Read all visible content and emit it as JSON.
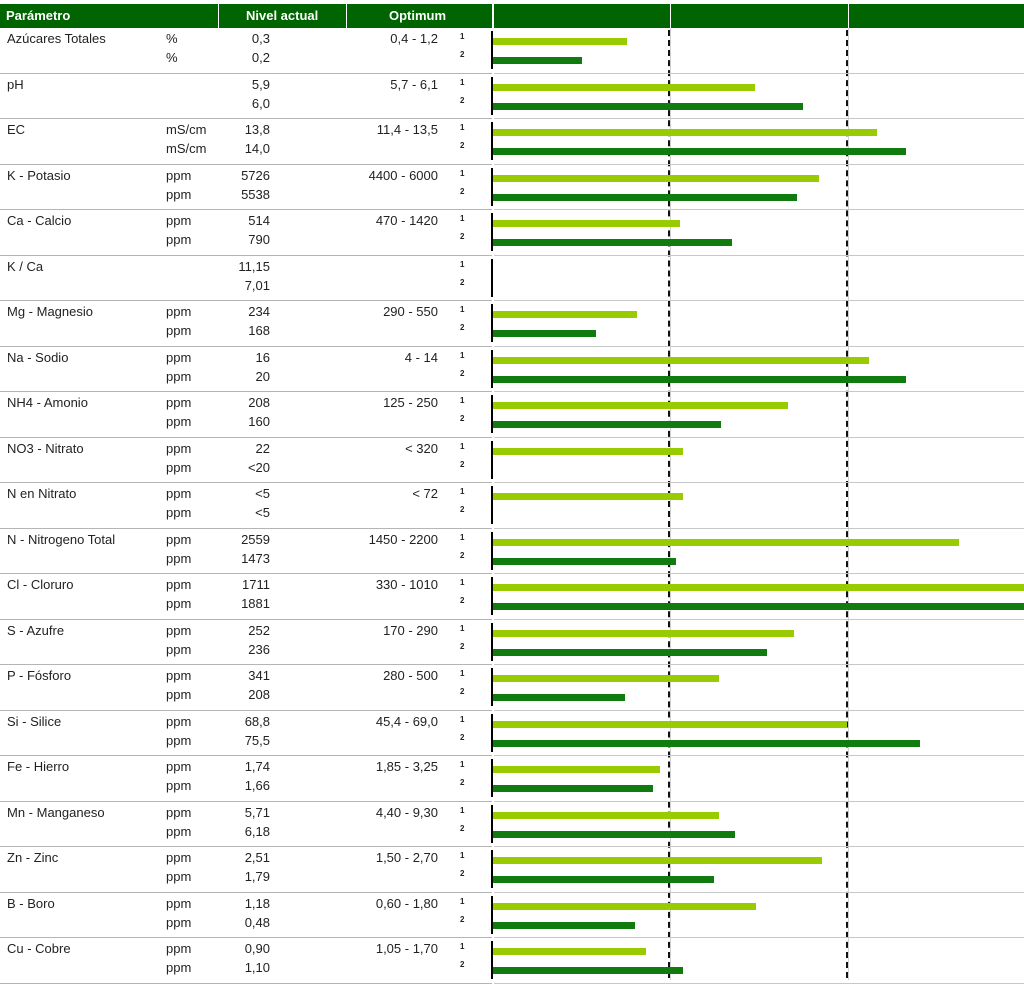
{
  "header": {
    "param": "Parámetro",
    "level": "Nivel actual",
    "optimum": "Optimum"
  },
  "index_labels": [
    "1",
    "2"
  ],
  "colors": {
    "header": "#006400",
    "bar1": "#99cc00",
    "bar2": "#107c10"
  },
  "rows": [
    {
      "name": "Azúcares Totales",
      "u1": "%",
      "u2": "%",
      "v1": "0,3",
      "v2": "0,2",
      "opt": "0,4 - 1,2",
      "f1": 0.75,
      "f2": 0.5
    },
    {
      "name": "pH",
      "u1": "",
      "u2": "",
      "v1": "5,9",
      "v2": "6,0",
      "opt": "5,7 - 6,1",
      "f1": 1.47,
      "f2": 1.74
    },
    {
      "name": "EC",
      "u1": "mS/cm",
      "u2": "mS/cm",
      "v1": "13,8",
      "v2": "14,0",
      "opt": "11,4 - 13,5",
      "f1": 2.16,
      "f2": 2.32
    },
    {
      "name": "K - Potasio",
      "u1": "ppm",
      "u2": "ppm",
      "v1": "5726",
      "v2": "5538",
      "opt": "4400 - 6000",
      "f1": 1.83,
      "f2": 1.71
    },
    {
      "name": "Ca - Calcio",
      "u1": "ppm",
      "u2": "ppm",
      "v1": "514",
      "v2": "790",
      "opt": "470 - 1420",
      "f1": 1.05,
      "f2": 1.34
    },
    {
      "name": "K / Ca",
      "u1": "",
      "u2": "",
      "v1": "11,15",
      "v2": "7,01",
      "opt": "",
      "f1": 0,
      "f2": 0
    },
    {
      "name": "Mg - Magnesio",
      "u1": "ppm",
      "u2": "ppm",
      "v1": "234",
      "v2": "168",
      "opt": "290 - 550",
      "f1": 0.81,
      "f2": 0.58
    },
    {
      "name": "Na - Sodio",
      "u1": "ppm",
      "u2": "ppm",
      "v1": "16",
      "v2": "20",
      "opt": "4 - 14",
      "f1": 2.11,
      "f2": 2.32
    },
    {
      "name": "NH4 - Amonio",
      "u1": "ppm",
      "u2": "ppm",
      "v1": "208",
      "v2": "160",
      "opt": "125 - 250",
      "f1": 1.66,
      "f2": 1.28
    },
    {
      "name": "NO3 - Nitrato",
      "u1": "ppm",
      "u2": "ppm",
      "v1": "22",
      "v2": "<20",
      "opt": "< 320",
      "f1": 1.07,
      "f2": 0
    },
    {
      "name": "N en Nitrato",
      "u1": "ppm",
      "u2": "ppm",
      "v1": "<5",
      "v2": "<5",
      "opt": "< 72",
      "f1": 1.07,
      "f2": 0
    },
    {
      "name": "N - Nitrogeno Total",
      "u1": "ppm",
      "u2": "ppm",
      "v1": "2559",
      "v2": "1473",
      "opt": "1450 - 2200",
      "f1": 2.62,
      "f2": 1.03
    },
    {
      "name": "Cl - Cloruro",
      "u1": "ppm",
      "u2": "ppm",
      "v1": "1711",
      "v2": "1881",
      "opt": "330 - 1010",
      "f1": 3.0,
      "f2": 3.0
    },
    {
      "name": "S - Azufre",
      "u1": "ppm",
      "u2": "ppm",
      "v1": "252",
      "v2": "236",
      "opt": "170 - 290",
      "f1": 1.69,
      "f2": 1.54
    },
    {
      "name": "P - Fósforo",
      "u1": "ppm",
      "u2": "ppm",
      "v1": "341",
      "v2": "208",
      "opt": "280 - 500",
      "f1": 1.27,
      "f2": 0.74
    },
    {
      "name": "Si - Silice",
      "u1": "ppm",
      "u2": "ppm",
      "v1": "68,8",
      "v2": "75,5",
      "opt": "45,4 - 69,0",
      "f1": 1.99,
      "f2": 2.4
    },
    {
      "name": "Fe - Hierro",
      "u1": "ppm",
      "u2": "ppm",
      "v1": "1,74",
      "v2": "1,66",
      "opt": "1,85 - 3,25",
      "f1": 0.94,
      "f2": 0.9
    },
    {
      "name": "Mn - Manganeso",
      "u1": "ppm",
      "u2": "ppm",
      "v1": "5,71",
      "v2": "6,18",
      "opt": "4,40 - 9,30",
      "f1": 1.27,
      "f2": 1.36
    },
    {
      "name": "Zn - Zinc",
      "u1": "ppm",
      "u2": "ppm",
      "v1": "2,51",
      "v2": "1,79",
      "opt": "1,50 - 2,70",
      "f1": 1.85,
      "f2": 1.24
    },
    {
      "name": "B - Boro",
      "u1": "ppm",
      "u2": "ppm",
      "v1": "1,18",
      "v2": "0,48",
      "opt": "0,60 - 1,80",
      "f1": 1.48,
      "f2": 0.8
    },
    {
      "name": "Cu - Cobre",
      "u1": "ppm",
      "u2": "ppm",
      "v1": "0,90",
      "v2": "1,10",
      "opt": "1,05 - 1,70",
      "f1": 0.86,
      "f2": 1.07
    }
  ]
}
